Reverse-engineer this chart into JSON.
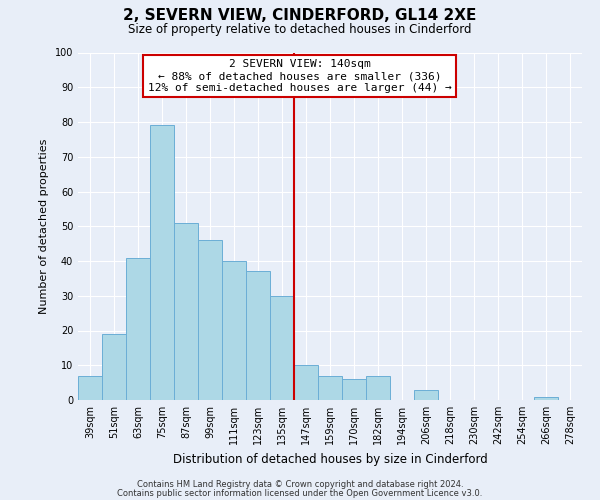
{
  "title": "2, SEVERN VIEW, CINDERFORD, GL14 2XE",
  "subtitle": "Size of property relative to detached houses in Cinderford",
  "xlabel": "Distribution of detached houses by size in Cinderford",
  "ylabel": "Number of detached properties",
  "bar_labels": [
    "39sqm",
    "51sqm",
    "63sqm",
    "75sqm",
    "87sqm",
    "99sqm",
    "111sqm",
    "123sqm",
    "135sqm",
    "147sqm",
    "159sqm",
    "170sqm",
    "182sqm",
    "194sqm",
    "206sqm",
    "218sqm",
    "230sqm",
    "242sqm",
    "254sqm",
    "266sqm",
    "278sqm"
  ],
  "bar_values": [
    7,
    19,
    41,
    79,
    51,
    46,
    40,
    37,
    30,
    10,
    7,
    6,
    7,
    0,
    3,
    0,
    0,
    0,
    0,
    1,
    0
  ],
  "bar_color": "#add8e6",
  "bar_edge_color": "#6baed6",
  "vline_x": 8.5,
  "vline_color": "#cc0000",
  "ylim": [
    0,
    100
  ],
  "annotation_title": "2 SEVERN VIEW: 140sqm",
  "annotation_line1": "← 88% of detached houses are smaller (336)",
  "annotation_line2": "12% of semi-detached houses are larger (44) →",
  "annotation_box_color": "#ffffff",
  "annotation_box_edge": "#cc0000",
  "footnote1": "Contains HM Land Registry data © Crown copyright and database right 2024.",
  "footnote2": "Contains public sector information licensed under the Open Government Licence v3.0.",
  "background_color": "#e8eef8",
  "grid_color": "#ffffff",
  "title_fontsize": 11,
  "subtitle_fontsize": 8.5,
  "ylabel_fontsize": 8,
  "xlabel_fontsize": 8.5,
  "tick_fontsize": 7,
  "annot_fontsize": 8
}
